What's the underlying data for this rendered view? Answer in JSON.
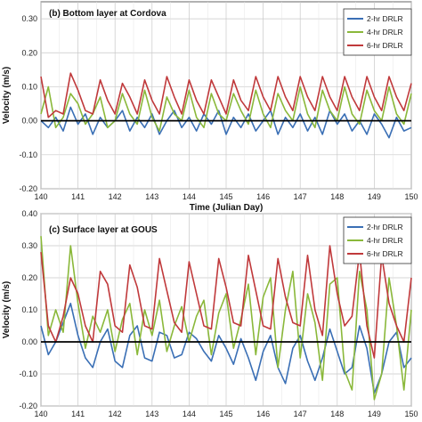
{
  "chart_data": [
    {
      "type": "line",
      "title": "(b) Bottom layer at Cordova",
      "xlabel": "Time (Julian Day)",
      "ylabel": "Velocity (m/s)",
      "xlim": [
        140,
        150
      ],
      "ylim": [
        -0.2,
        0.35
      ],
      "grid": true,
      "legend_position": "top-right",
      "x_ticks": [
        "140",
        "141",
        "142",
        "143",
        "144",
        "145",
        "146",
        "147",
        "148",
        "149",
        "150"
      ],
      "y_ticks": [
        "0.30",
        "0.20",
        "0.10",
        "0.00",
        "-0.10",
        "-0.20"
      ],
      "series": [
        {
          "name": "2-hr DRLR",
          "color": "#3a6fb5",
          "x": [
            140.0,
            140.2,
            140.4,
            140.6,
            140.8,
            141.0,
            141.2,
            141.4,
            141.6,
            141.8,
            142.0,
            142.2,
            142.4,
            142.6,
            142.8,
            143.0,
            143.2,
            143.4,
            143.6,
            143.8,
            144.0,
            144.2,
            144.4,
            144.6,
            144.8,
            145.0,
            145.2,
            145.4,
            145.6,
            145.8,
            146.0,
            146.2,
            146.4,
            146.6,
            146.8,
            147.0,
            147.2,
            147.4,
            147.6,
            147.8,
            148.0,
            148.2,
            148.4,
            148.6,
            148.8,
            149.0,
            149.2,
            149.4,
            149.6,
            149.8,
            150.0
          ],
          "values": [
            0.0,
            -0.02,
            0.01,
            -0.03,
            0.04,
            -0.01,
            0.02,
            -0.04,
            0.01,
            -0.02,
            0.0,
            0.03,
            -0.03,
            0.01,
            -0.02,
            0.02,
            -0.04,
            0.0,
            0.03,
            -0.02,
            0.01,
            -0.03,
            0.02,
            -0.01,
            0.03,
            -0.04,
            0.01,
            -0.02,
            0.02,
            -0.03,
            0.0,
            0.03,
            -0.04,
            0.01,
            -0.02,
            0.02,
            -0.03,
            0.01,
            -0.04,
            0.03,
            -0.01,
            0.02,
            -0.03,
            0.0,
            -0.04,
            0.02,
            -0.01,
            -0.05,
            0.01,
            -0.03,
            -0.02
          ]
        },
        {
          "name": "4-hr DRLR",
          "color": "#8ab83a",
          "x": [
            140.0,
            140.2,
            140.4,
            140.6,
            140.8,
            141.0,
            141.2,
            141.4,
            141.6,
            141.8,
            142.0,
            142.2,
            142.4,
            142.6,
            142.8,
            143.0,
            143.2,
            143.4,
            143.6,
            143.8,
            144.0,
            144.2,
            144.4,
            144.6,
            144.8,
            145.0,
            145.2,
            145.4,
            145.6,
            145.8,
            146.0,
            146.2,
            146.4,
            146.6,
            146.8,
            147.0,
            147.2,
            147.4,
            147.6,
            147.8,
            148.0,
            148.2,
            148.4,
            148.6,
            148.8,
            149.0,
            149.2,
            149.4,
            149.6,
            149.8,
            150.0
          ],
          "values": [
            0.02,
            0.1,
            -0.02,
            0.01,
            0.08,
            0.05,
            -0.01,
            0.02,
            0.07,
            -0.02,
            0.0,
            0.08,
            0.02,
            -0.01,
            0.09,
            0.01,
            -0.03,
            0.07,
            0.02,
            0.0,
            0.09,
            0.01,
            -0.02,
            0.08,
            0.02,
            0.0,
            0.08,
            0.03,
            -0.01,
            0.09,
            0.02,
            -0.02,
            0.08,
            0.03,
            0.0,
            0.1,
            0.02,
            -0.02,
            0.09,
            0.03,
            0.0,
            0.1,
            0.02,
            -0.01,
            0.09,
            0.03,
            0.0,
            0.1,
            0.02,
            -0.01,
            0.08
          ]
        },
        {
          "name": "6-hr DRLR",
          "color": "#c0393b",
          "x": [
            140.0,
            140.2,
            140.4,
            140.6,
            140.8,
            141.0,
            141.2,
            141.4,
            141.6,
            141.8,
            142.0,
            142.2,
            142.4,
            142.6,
            142.8,
            143.0,
            143.2,
            143.4,
            143.6,
            143.8,
            144.0,
            144.2,
            144.4,
            144.6,
            144.8,
            145.0,
            145.2,
            145.4,
            145.6,
            145.8,
            146.0,
            146.2,
            146.4,
            146.6,
            146.8,
            147.0,
            147.2,
            147.4,
            147.6,
            147.8,
            148.0,
            148.2,
            148.4,
            148.6,
            148.8,
            149.0,
            149.2,
            149.4,
            149.6,
            149.8,
            150.0
          ],
          "values": [
            0.13,
            0.01,
            0.03,
            0.02,
            0.14,
            0.09,
            0.03,
            0.02,
            0.12,
            0.06,
            0.02,
            0.11,
            0.07,
            0.02,
            0.12,
            0.06,
            0.02,
            0.13,
            0.07,
            0.02,
            0.12,
            0.06,
            0.02,
            0.12,
            0.07,
            0.02,
            0.12,
            0.06,
            0.03,
            0.13,
            0.07,
            0.03,
            0.13,
            0.07,
            0.03,
            0.13,
            0.07,
            0.03,
            0.13,
            0.07,
            0.03,
            0.13,
            0.07,
            0.03,
            0.13,
            0.07,
            0.03,
            0.13,
            0.07,
            0.03,
            0.11
          ]
        }
      ]
    },
    {
      "type": "line",
      "title": "(c) Surface layer at GOUS",
      "xlabel": "",
      "ylabel": "Velocity (m/s)",
      "xlim": [
        140,
        150
      ],
      "ylim": [
        -0.2,
        0.4
      ],
      "grid": true,
      "legend_position": "top-right",
      "x_ticks": [
        "140",
        "141",
        "142",
        "143",
        "144",
        "145",
        "146",
        "147",
        "148",
        "149",
        "150"
      ],
      "y_ticks": [
        "0.40",
        "0.30",
        "0.20",
        "0.10",
        "0.00",
        "-0.10",
        "-0.20"
      ],
      "series": [
        {
          "name": "2-hr DRLR",
          "color": "#3a6fb5",
          "x": [
            140.0,
            140.2,
            140.4,
            140.6,
            140.8,
            141.0,
            141.2,
            141.4,
            141.6,
            141.8,
            142.0,
            142.2,
            142.4,
            142.6,
            142.8,
            143.0,
            143.2,
            143.4,
            143.6,
            143.8,
            144.0,
            144.2,
            144.4,
            144.6,
            144.8,
            145.0,
            145.2,
            145.4,
            145.6,
            145.8,
            146.0,
            146.2,
            146.4,
            146.6,
            146.8,
            147.0,
            147.2,
            147.4,
            147.6,
            147.8,
            148.0,
            148.2,
            148.4,
            148.6,
            148.8,
            149.0,
            149.2,
            149.4,
            149.6,
            149.8,
            150.0
          ],
          "values": [
            0.05,
            -0.04,
            0.0,
            0.06,
            0.12,
            0.02,
            -0.05,
            -0.08,
            0.0,
            0.04,
            -0.06,
            -0.08,
            0.02,
            0.05,
            -0.05,
            -0.06,
            0.03,
            0.02,
            -0.05,
            -0.04,
            0.03,
            0.01,
            -0.03,
            -0.06,
            0.02,
            -0.02,
            -0.07,
            0.01,
            -0.05,
            -0.12,
            -0.03,
            0.02,
            -0.08,
            -0.13,
            -0.02,
            0.02,
            -0.06,
            -0.12,
            -0.05,
            0.04,
            -0.03,
            -0.1,
            -0.08,
            0.05,
            -0.02,
            -0.16,
            -0.1,
            0.0,
            0.03,
            -0.08,
            -0.05
          ]
        },
        {
          "name": "4-hr DRLR",
          "color": "#8ab83a",
          "x": [
            140.0,
            140.2,
            140.4,
            140.6,
            140.8,
            141.0,
            141.2,
            141.4,
            141.6,
            141.8,
            142.0,
            142.2,
            142.4,
            142.6,
            142.8,
            143.0,
            143.2,
            143.4,
            143.6,
            143.8,
            144.0,
            144.2,
            144.4,
            144.6,
            144.8,
            145.0,
            145.2,
            145.4,
            145.6,
            145.8,
            146.0,
            146.2,
            146.4,
            146.6,
            146.8,
            147.0,
            147.2,
            147.4,
            147.6,
            147.8,
            148.0,
            148.2,
            148.4,
            148.6,
            148.8,
            149.0,
            149.2,
            149.4,
            149.6,
            149.8,
            150.0
          ],
          "values": [
            0.33,
            0.02,
            0.1,
            0.03,
            0.3,
            0.12,
            -0.02,
            0.08,
            0.03,
            0.1,
            -0.03,
            0.07,
            0.12,
            -0.04,
            0.1,
            0.02,
            0.13,
            -0.03,
            0.05,
            0.11,
            0.0,
            0.08,
            0.13,
            -0.04,
            0.09,
            0.15,
            -0.02,
            0.07,
            0.18,
            -0.04,
            0.14,
            0.2,
            -0.08,
            0.1,
            0.22,
            -0.05,
            0.15,
            0.06,
            -0.12,
            0.18,
            0.2,
            -0.09,
            -0.15,
            0.22,
            0.1,
            -0.18,
            -0.1,
            0.2,
            0.05,
            -0.15,
            0.1
          ]
        },
        {
          "name": "6-hr DRLR",
          "color": "#c0393b",
          "x": [
            140.0,
            140.2,
            140.4,
            140.6,
            140.8,
            141.0,
            141.2,
            141.4,
            141.6,
            141.8,
            142.0,
            142.2,
            142.4,
            142.6,
            142.8,
            143.0,
            143.2,
            143.4,
            143.6,
            143.8,
            144.0,
            144.2,
            144.4,
            144.6,
            144.8,
            145.0,
            145.2,
            145.4,
            145.6,
            145.8,
            146.0,
            146.2,
            146.4,
            146.6,
            146.8,
            147.0,
            147.2,
            147.4,
            147.6,
            147.8,
            148.0,
            148.2,
            148.4,
            148.6,
            148.8,
            149.0,
            149.2,
            149.4,
            149.6,
            149.8,
            150.0
          ],
          "values": [
            0.28,
            0.05,
            0.0,
            0.08,
            0.2,
            0.15,
            0.05,
            0.0,
            0.22,
            0.18,
            0.05,
            0.03,
            0.24,
            0.17,
            0.05,
            0.04,
            0.26,
            0.16,
            0.06,
            0.03,
            0.25,
            0.15,
            0.05,
            0.04,
            0.26,
            0.17,
            0.06,
            0.05,
            0.27,
            0.16,
            0.05,
            0.04,
            0.26,
            0.14,
            0.06,
            0.05,
            0.27,
            0.1,
            0.02,
            0.3,
            0.15,
            0.05,
            0.08,
            0.28,
            0.05,
            -0.05,
            0.27,
            0.12,
            0.05,
            0.0,
            0.2
          ]
        }
      ]
    }
  ]
}
